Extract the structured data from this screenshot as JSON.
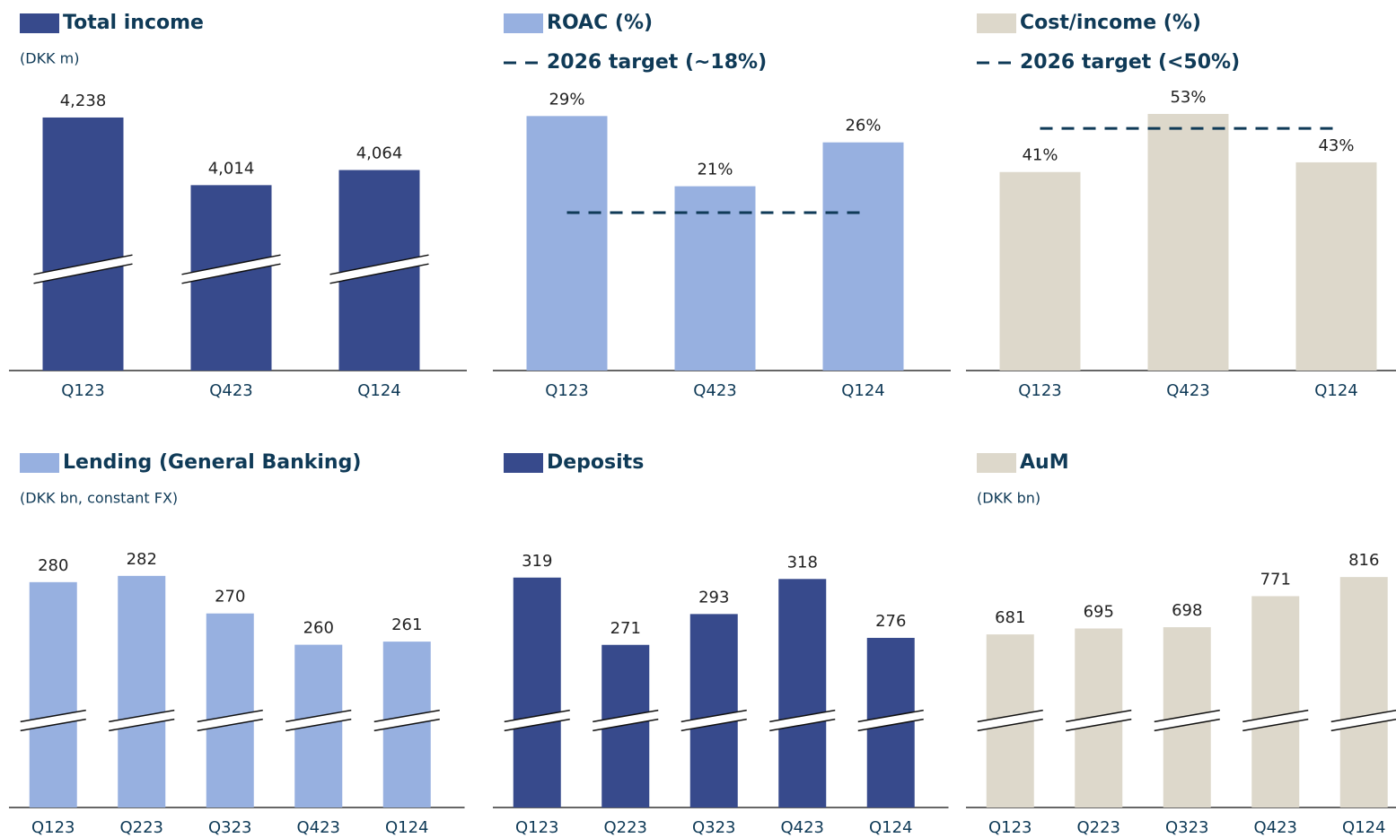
{
  "chart_data": [
    {
      "type": "bar",
      "series": [
        {
          "name": "Total income",
          "color": "#374a8c",
          "values": [
            4238,
            4014,
            4064
          ],
          "value_labels": [
            "4,238",
            "4,014",
            "4,064"
          ]
        }
      ],
      "subtitle": "(DKK m)",
      "categories": [
        "Q123",
        "Q423",
        "Q124"
      ],
      "ylim": [
        3400,
        4330
      ]
    },
    {
      "type": "bar",
      "series": [
        {
          "name": "ROAC (%)",
          "color": "#97b0e0",
          "values": [
            29,
            21,
            26
          ],
          "value_labels": [
            "29%",
            "21%",
            "26%"
          ]
        }
      ],
      "target": {
        "name": "2026 target (~18%)",
        "value": 18
      },
      "categories": [
        "Q123",
        "Q423",
        "Q124"
      ],
      "ylim": [
        0,
        32
      ]
    },
    {
      "type": "bar",
      "series": [
        {
          "name": "Cost/income (%)",
          "color": "#ddd8cb",
          "values": [
            41,
            53,
            43
          ],
          "value_labels": [
            "41%",
            "53%",
            "43%"
          ]
        }
      ],
      "target": {
        "name": "2026 target (<50%)",
        "value": 50
      },
      "categories": [
        "Q123",
        "Q423",
        "Q124"
      ],
      "ylim": [
        0,
        58
      ]
    },
    {
      "type": "bar",
      "series": [
        {
          "name": "Lending (General Banking)",
          "color": "#97b0e0",
          "values": [
            280,
            282,
            270,
            260,
            261
          ]
        }
      ],
      "subtitle": "(DKK bn, constant FX)",
      "categories": [
        "Q123",
        "Q223",
        "Q323",
        "Q423",
        "Q124"
      ],
      "ylim": [
        208,
        294
      ]
    },
    {
      "type": "bar",
      "series": [
        {
          "name": "Deposits",
          "color": "#374a8c",
          "values": [
            319,
            271,
            293,
            318,
            276
          ]
        }
      ],
      "categories": [
        "Q123",
        "Q223",
        "Q323",
        "Q423",
        "Q124"
      ],
      "ylim": [
        155,
        347
      ]
    },
    {
      "type": "bar",
      "series": [
        {
          "name": "AuM",
          "color": "#ddd8cb",
          "values": [
            681,
            695,
            698,
            771,
            816
          ]
        }
      ],
      "subtitle": "(DKK bn)",
      "categories": [
        "Q123",
        "Q223",
        "Q323",
        "Q423",
        "Q124"
      ],
      "ylim": [
        274,
        907
      ]
    }
  ]
}
